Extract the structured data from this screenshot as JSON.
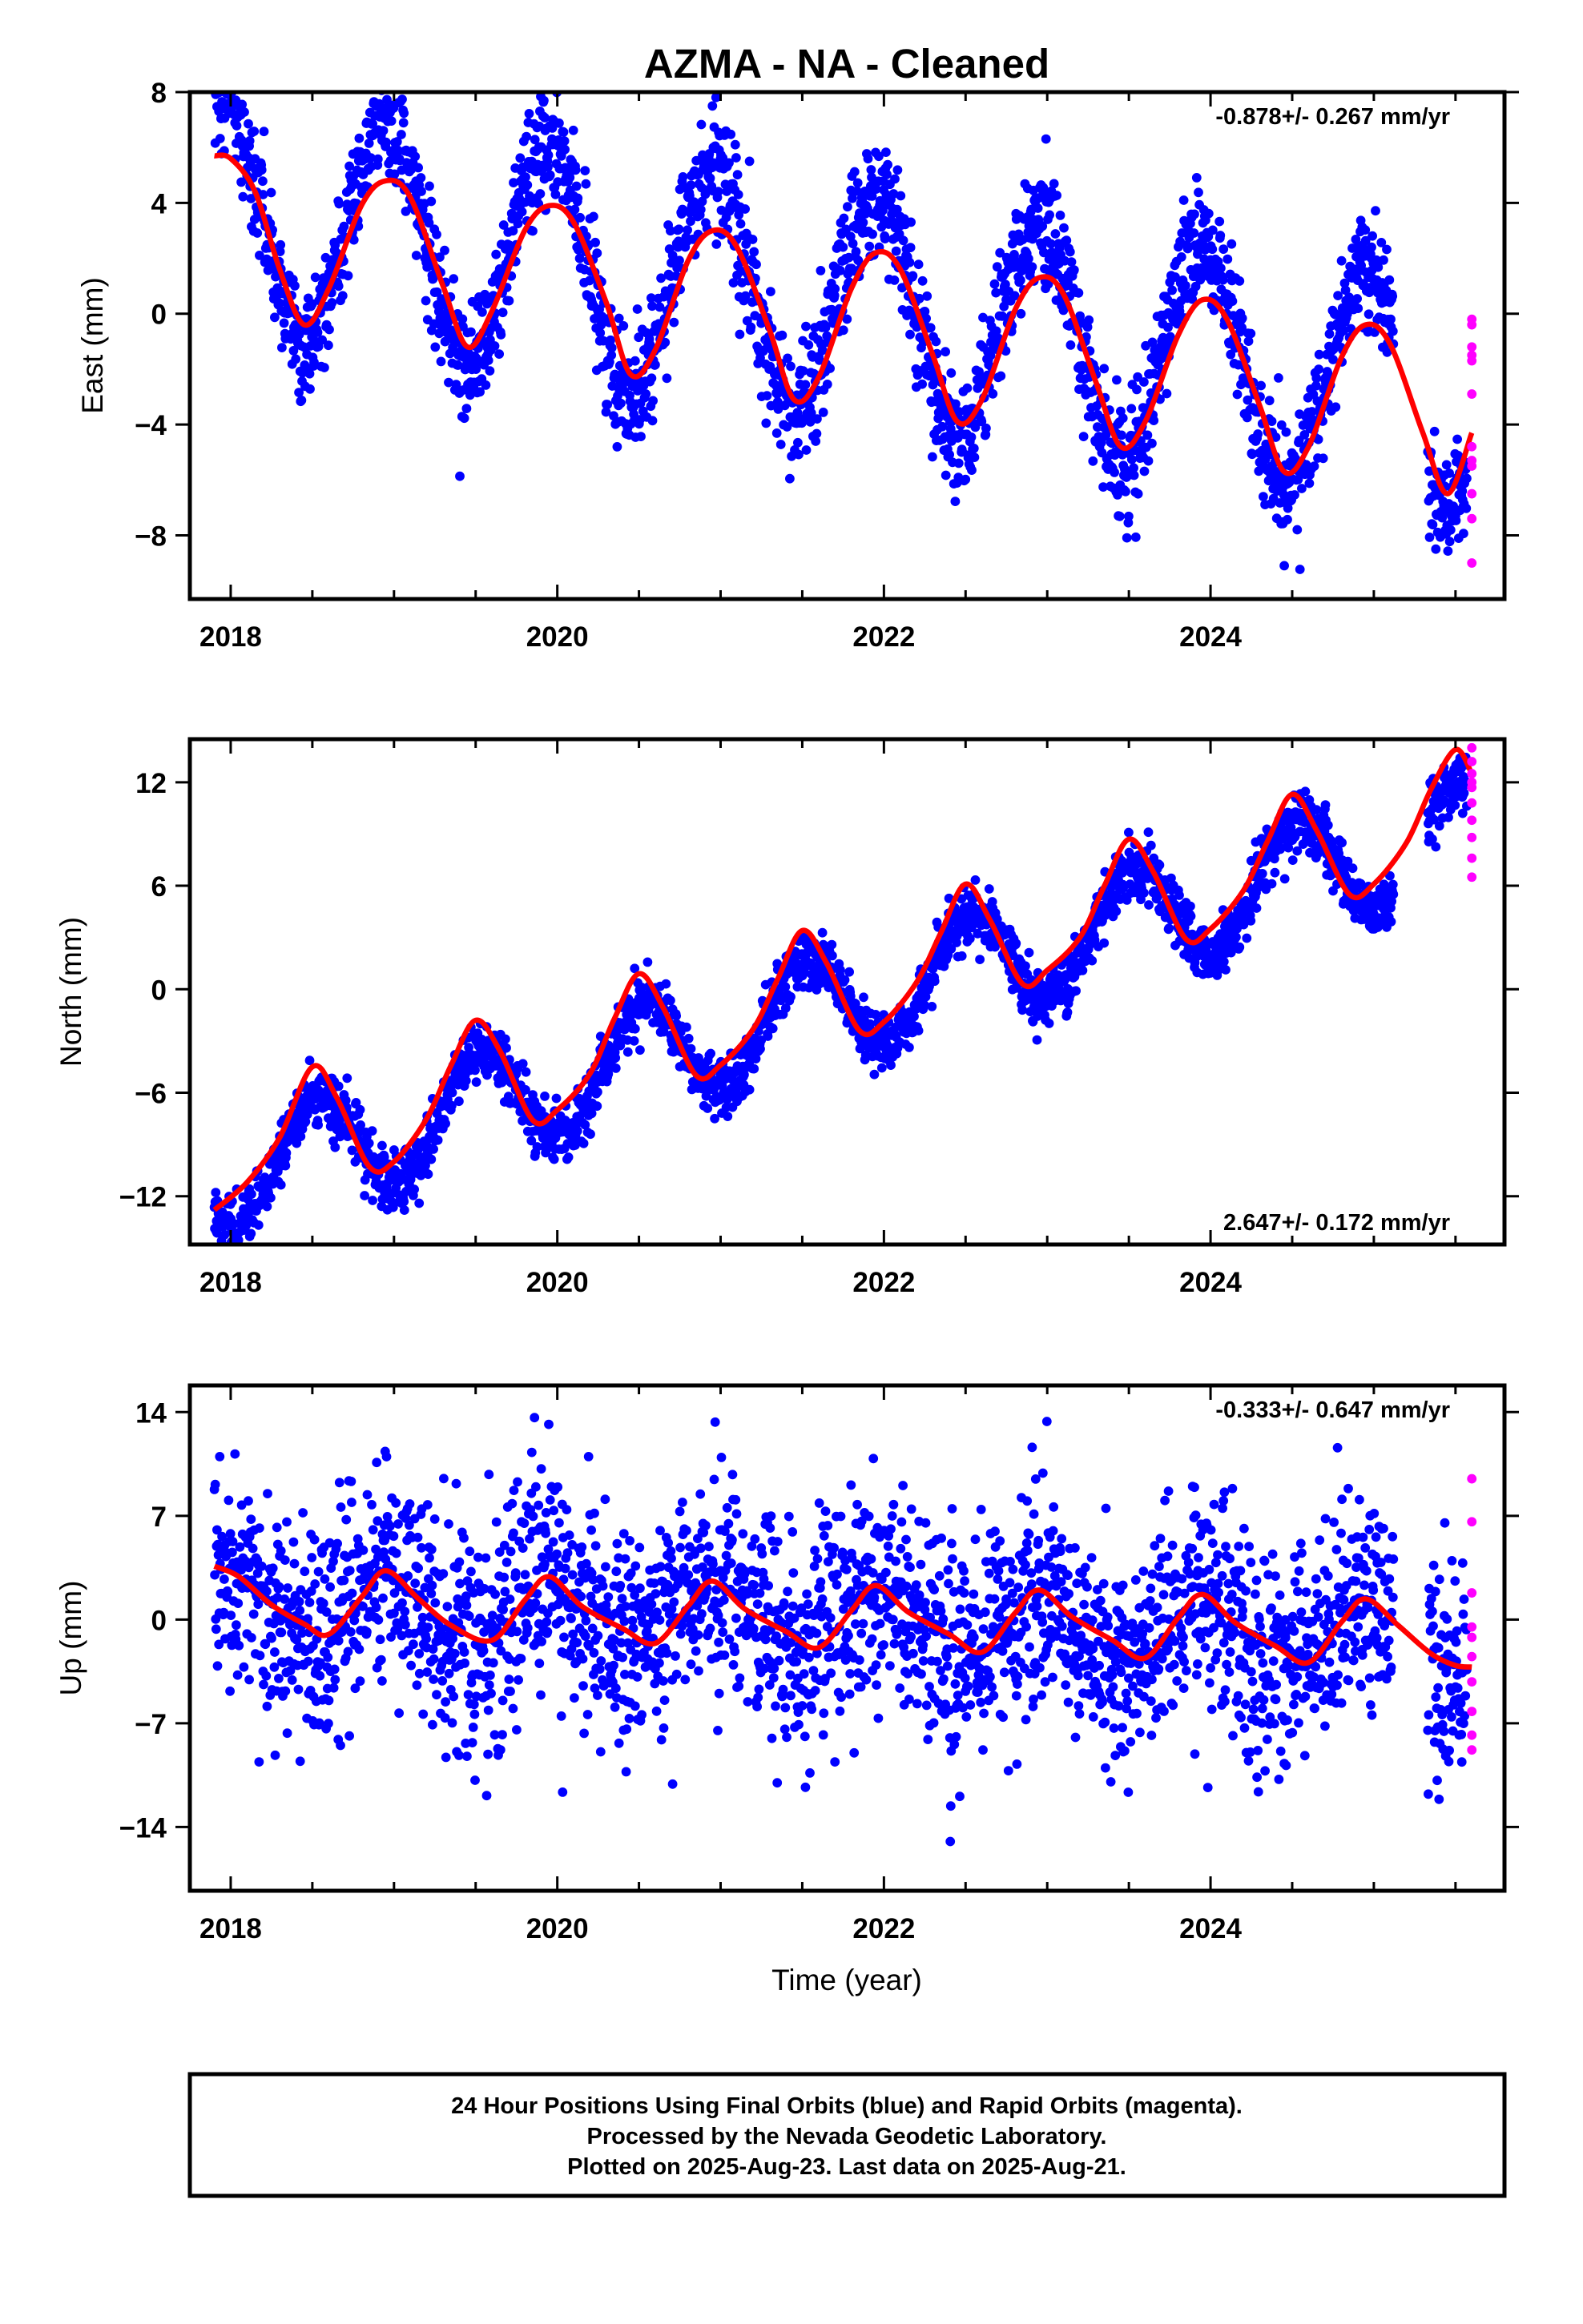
{
  "title": "AZMA  - NA - Cleaned",
  "xlabel": "Time (year)",
  "footer": [
    "24 Hour Positions Using Final Orbits (blue) and Rapid Orbits (magenta).",
    "Processed by the Nevada Geodetic Laboratory.",
    "Plotted on 2025-Aug-23. Last data on 2025-Aug-21."
  ],
  "colors": {
    "final": "#0000ff",
    "rapid": "#ff00ff",
    "model": "#ff0000",
    "frame": "#000000"
  },
  "chart_data": [
    {
      "type": "scatter",
      "component": "east",
      "ylabel": "East (mm)",
      "rate_label": "-0.878+/- 0.267 mm/yr",
      "rate_position": "top-right",
      "xlim": [
        2017.75,
        2025.8
      ],
      "ylim": [
        -10.3,
        8.0
      ],
      "xticks": [
        2018,
        2020,
        2022,
        2024
      ],
      "yticks": [
        8,
        4,
        0,
        -4,
        -8
      ],
      "final_orbits": {
        "start_year": 2017.9,
        "end_year": 2025.57,
        "gap": [
          2025.12,
          2025.33
        ],
        "trend_mm_per_year": -0.878,
        "intercept_at_2018_mm": 3.6,
        "annual_amplitude_mm": 4.2,
        "annual_peak_year_fraction": 0.95,
        "scatter_mm": 1.1
      },
      "rapid_orbits": {
        "x": 2025.6,
        "y": [
          -0.2,
          -0.4,
          -1.2,
          -1.5,
          -1.7,
          -2.9,
          -4.8,
          -5.3,
          -5.5,
          -6.5,
          -7.4,
          -9.0
        ]
      },
      "model": {
        "x": [
          2017.9,
          2018.0,
          2018.15,
          2018.3,
          2018.45,
          2018.6,
          2018.8,
          2018.95,
          2019.1,
          2019.3,
          2019.45,
          2019.6,
          2019.8,
          2019.95,
          2020.1,
          2020.3,
          2020.45,
          2020.6,
          2020.8,
          2020.95,
          2021.1,
          2021.3,
          2021.45,
          2021.6,
          2021.8,
          2021.95,
          2022.1,
          2022.3,
          2022.45,
          2022.6,
          2022.8,
          2022.95,
          2023.1,
          2023.3,
          2023.45,
          2023.6,
          2023.8,
          2023.95,
          2024.1,
          2024.3,
          2024.45,
          2024.6,
          2024.8,
          2024.95,
          2025.1,
          2025.3,
          2025.45,
          2025.6
        ],
        "y": [
          5.7,
          5.6,
          4.4,
          1.6,
          -0.4,
          0.9,
          3.9,
          4.8,
          4.2,
          1.0,
          -1.2,
          0.1,
          3.0,
          3.9,
          3.3,
          0.4,
          -2.2,
          -1.3,
          1.9,
          3.0,
          2.4,
          -0.6,
          -3.1,
          -2.3,
          0.9,
          2.2,
          1.6,
          -1.5,
          -3.9,
          -3.1,
          0.1,
          1.3,
          0.7,
          -2.5,
          -4.8,
          -3.9,
          -0.8,
          0.5,
          -0.2,
          -3.3,
          -5.7,
          -4.8,
          -1.6,
          -0.4,
          -1.1,
          -4.3,
          -6.5,
          -4.3
        ]
      }
    },
    {
      "type": "scatter",
      "component": "north",
      "ylabel": "North (mm)",
      "rate_label": "2.647+/- 0.172 mm/yr",
      "rate_position": "bottom-right",
      "xlim": [
        2017.75,
        2025.8
      ],
      "ylim": [
        -14.8,
        14.5
      ],
      "xticks": [
        2018,
        2020,
        2022,
        2024
      ],
      "yticks": [
        12,
        6,
        0,
        -6,
        -12
      ],
      "final_orbits": {
        "start_year": 2017.9,
        "end_year": 2025.57,
        "gap": [
          2025.12,
          2025.33
        ],
        "trend_mm_per_year": 2.647,
        "intercept_at_2018_mm": -10.7,
        "annual_amplitude_mm": 3.1,
        "annual_peak_year_fraction": 0.52,
        "scatter_mm": 0.85
      },
      "rapid_orbits": {
        "x": 2025.6,
        "y": [
          14.0,
          13.2,
          12.5,
          12.0,
          11.7,
          10.8,
          9.8,
          8.8,
          7.6,
          6.5
        ]
      },
      "model": {
        "x": [
          2017.9,
          2018.1,
          2018.3,
          2018.5,
          2018.65,
          2018.85,
          2019.0,
          2019.2,
          2019.35,
          2019.5,
          2019.65,
          2019.85,
          2020.0,
          2020.2,
          2020.35,
          2020.5,
          2020.65,
          2020.85,
          2021.0,
          2021.2,
          2021.35,
          2021.5,
          2021.65,
          2021.85,
          2022.0,
          2022.2,
          2022.35,
          2022.5,
          2022.65,
          2022.85,
          2023.0,
          2023.2,
          2023.35,
          2023.5,
          2023.65,
          2023.85,
          2024.0,
          2024.2,
          2024.35,
          2024.5,
          2024.65,
          2024.85,
          2025.0,
          2025.2,
          2025.35,
          2025.5,
          2025.6
        ],
        "y": [
          -12.8,
          -11.2,
          -8.6,
          -4.5,
          -6.3,
          -10.3,
          -10.0,
          -7.5,
          -4.4,
          -1.8,
          -3.6,
          -7.6,
          -7.0,
          -4.9,
          -1.7,
          0.9,
          -1.1,
          -5.0,
          -4.4,
          -2.3,
          0.6,
          3.4,
          1.5,
          -2.4,
          -1.9,
          0.4,
          3.3,
          6.1,
          4.0,
          0.3,
          1.1,
          3.0,
          6.0,
          8.7,
          6.8,
          2.9,
          3.5,
          5.7,
          8.6,
          11.3,
          9.2,
          5.5,
          6.1,
          8.5,
          11.6,
          13.9,
          12.5
        ]
      }
    },
    {
      "type": "scatter",
      "component": "up",
      "ylabel": "Up (mm)",
      "rate_label": "-0.333+/- 0.647 mm/yr",
      "rate_position": "top-right",
      "xlim": [
        2017.75,
        2025.8
      ],
      "ylim": [
        -18.3,
        15.8
      ],
      "xticks": [
        2018,
        2020,
        2022,
        2024
      ],
      "yticks": [
        14,
        7,
        0,
        -7,
        -14
      ],
      "final_orbits": {
        "start_year": 2017.9,
        "end_year": 2025.57,
        "gap": [
          2025.12,
          2025.33
        ],
        "trend_mm_per_year": -0.333,
        "intercept_at_2018_mm": 1.2,
        "annual_amplitude_mm": 2.2,
        "annual_peak_year_fraction": 0.95,
        "scatter_mm": 3.6
      },
      "rapid_orbits": {
        "x": 2025.6,
        "y": [
          9.5,
          6.6,
          1.8,
          -0.5,
          -1.2,
          -2.5,
          -4.2,
          -6.2,
          -7.8,
          -8.8
        ]
      },
      "model": {
        "x": [
          2017.9,
          2018.05,
          2018.25,
          2018.45,
          2018.6,
          2018.8,
          2018.95,
          2019.15,
          2019.35,
          2019.6,
          2019.8,
          2019.95,
          2020.15,
          2020.4,
          2020.6,
          2020.8,
          2020.95,
          2021.15,
          2021.4,
          2021.6,
          2021.8,
          2021.95,
          2022.15,
          2022.4,
          2022.6,
          2022.8,
          2022.95,
          2023.15,
          2023.4,
          2023.6,
          2023.8,
          2023.95,
          2024.15,
          2024.4,
          2024.6,
          2024.8,
          2024.95,
          2025.15,
          2025.35,
          2025.5,
          2025.6
        ],
        "y": [
          3.6,
          2.9,
          1.0,
          -0.3,
          -1.0,
          1.5,
          3.3,
          1.4,
          -0.4,
          -1.4,
          1.3,
          2.9,
          0.9,
          -0.6,
          -1.6,
          0.9,
          2.6,
          0.7,
          -0.8,
          -1.9,
          0.6,
          2.3,
          0.5,
          -1.0,
          -2.2,
          0.4,
          2.0,
          0.2,
          -1.4,
          -2.6,
          0.1,
          1.7,
          -0.2,
          -1.8,
          -2.9,
          -0.2,
          1.4,
          -0.4,
          -2.3,
          -3.1,
          -3.2
        ]
      }
    }
  ]
}
